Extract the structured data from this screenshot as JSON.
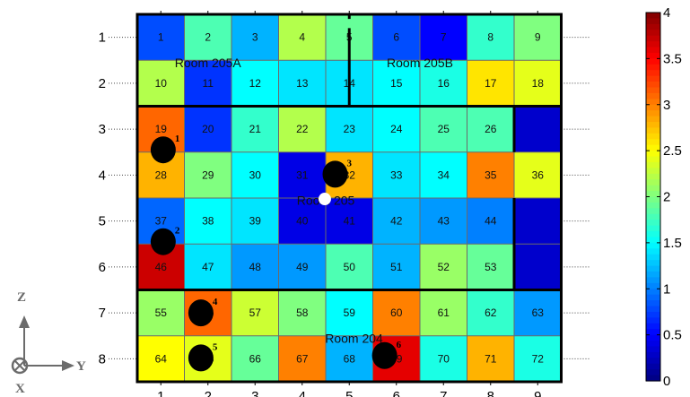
{
  "chart_data": {
    "type": "heatmap",
    "title": "",
    "xlabel": "",
    "ylabel": "",
    "x_ticks": [
      "1",
      "2",
      "3",
      "4",
      "5",
      "6",
      "7",
      "8",
      "9"
    ],
    "y_ticks": [
      "1",
      "2",
      "3",
      "4",
      "5",
      "6",
      "7",
      "8"
    ],
    "zlim": [
      0,
      4
    ],
    "colormap": "jet",
    "colorbar_ticks": [
      "0",
      "0.5",
      "1",
      "1.5",
      "2",
      "2.5",
      "3",
      "3.5",
      "4"
    ],
    "colorbar_ticks_values": [
      0,
      0.5,
      1,
      1.5,
      2,
      2.5,
      3,
      3.5,
      4
    ],
    "values": [
      [
        0.8,
        1.8,
        1.2,
        2.2,
        1.9,
        0.8,
        0.5,
        1.7,
        2.0
      ],
      [
        2.2,
        0.7,
        1.5,
        1.4,
        1.4,
        1.5,
        1.6,
        2.6,
        2.4
      ],
      [
        3.1,
        0.7,
        1.7,
        2.2,
        1.4,
        1.5,
        1.8,
        1.8,
        0.3
      ],
      [
        2.8,
        2.0,
        1.5,
        0.4,
        2.8,
        1.4,
        1.5,
        3.0,
        2.4
      ],
      [
        0.9,
        1.5,
        1.4,
        0.4,
        0.4,
        1.2,
        1.1,
        1.0,
        0.3
      ],
      [
        3.7,
        1.4,
        1.1,
        1.1,
        1.8,
        1.2,
        2.1,
        1.9,
        0.3
      ],
      [
        2.1,
        3.1,
        2.3,
        2.0,
        1.5,
        3.0,
        2.1,
        1.7,
        1.1
      ],
      [
        2.5,
        2.4,
        1.9,
        3.0,
        1.2,
        3.6,
        1.6,
        2.8,
        1.6
      ]
    ],
    "cell_labels": [
      [
        "1",
        "2",
        "3",
        "4",
        "5",
        "6",
        "7",
        "8",
        "9"
      ],
      [
        "10",
        "11",
        "12",
        "13",
        "14",
        "15",
        "16",
        "17",
        "18"
      ],
      [
        "19",
        "20",
        "21",
        "22",
        "23",
        "24",
        "25",
        "26",
        ""
      ],
      [
        "28",
        "29",
        "30",
        "31",
        "32",
        "33",
        "34",
        "35",
        "36"
      ],
      [
        "37",
        "38",
        "39",
        "40",
        "41",
        "42",
        "43",
        "44",
        ""
      ],
      [
        "46",
        "47",
        "48",
        "49",
        "50",
        "51",
        "52",
        "53",
        ""
      ],
      [
        "55",
        "56",
        "57",
        "58",
        "59",
        "60",
        "61",
        "62",
        "63"
      ],
      [
        "64",
        "65",
        "66",
        "67",
        "68",
        "69",
        "70",
        "71",
        "72"
      ]
    ],
    "rooms": [
      {
        "label": "Room 205A",
        "col": 2,
        "row": 1.55
      },
      {
        "label": "Room 205B",
        "col": 6.5,
        "row": 1.55
      },
      {
        "label": "Room 205",
        "col": 4.5,
        "row": 4.55
      },
      {
        "label": "Room 204",
        "col": 5.1,
        "row": 7.55
      }
    ],
    "markers": [
      {
        "label": "1",
        "col": 1.05,
        "row": 3.45
      },
      {
        "label": "2",
        "col": 1.05,
        "row": 5.45
      },
      {
        "label": "3",
        "col": 4.7,
        "row": 3.98
      },
      {
        "label": "4",
        "col": 1.85,
        "row": 7.0
      },
      {
        "label": "5",
        "col": 1.85,
        "row": 7.98
      },
      {
        "label": "6",
        "col": 5.75,
        "row": 7.93
      }
    ],
    "white_marker": {
      "col": 4.48,
      "row": 4.52
    }
  },
  "axes_indicator": {
    "z": "Z",
    "y": "Y",
    "x": "X"
  }
}
